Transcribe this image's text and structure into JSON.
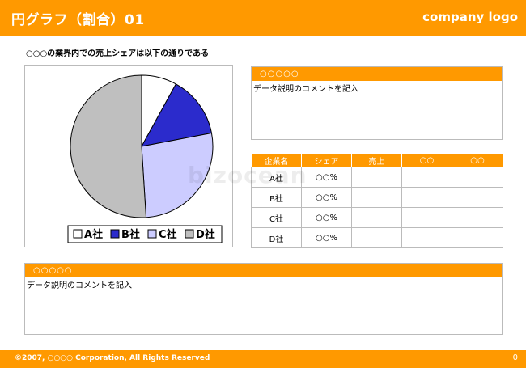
{
  "header": {
    "title": "円グラフ（割合）01",
    "logo": "company logo"
  },
  "subtitle": "○○○の業界内での売上シェアは以下の通りである",
  "chart_data": {
    "type": "pie",
    "categories": [
      "A社",
      "B社",
      "C社",
      "D社"
    ],
    "values": [
      8,
      14,
      27,
      51
    ],
    "colors": [
      "#ffffff",
      "#2b2bcc",
      "#ccccff",
      "#bfbfbf"
    ],
    "title": "",
    "legend": "bottom"
  },
  "top_panel": {
    "heading": "○○○○○",
    "comment": "データ説明のコメントを記入"
  },
  "table": {
    "headers": [
      "企業名",
      "シェア",
      "売上",
      "○○",
      "○○"
    ],
    "rows": [
      {
        "name": "A社",
        "share": "○○%"
      },
      {
        "name": "B社",
        "share": "○○%"
      },
      {
        "name": "C社",
        "share": "○○%"
      },
      {
        "name": "D社",
        "share": "○○%"
      }
    ]
  },
  "bottom_panel": {
    "heading": "○○○○○",
    "comment": "データ説明のコメントを記入"
  },
  "footer": {
    "copyright": "©2007, ○○○○ Corporation, All Rights Reserved",
    "page": "0"
  },
  "watermark": "bizocean"
}
